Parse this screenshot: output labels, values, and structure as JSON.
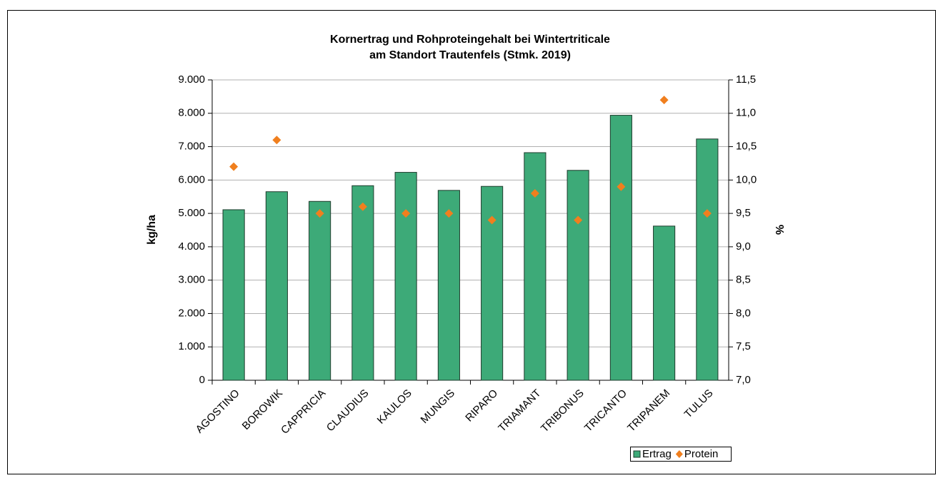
{
  "chart_data": {
    "type": "bar",
    "title": [
      "Kornertrag und Rohproteingehalt bei Wintertriticale",
      "am Standort Trautenfels (Stmk. 2019)"
    ],
    "ylabel": "kg/ha",
    "y2label": "%",
    "categories": [
      "AGOSTINO",
      "BOROWIK",
      "CAPPRICIA",
      "CLAUDIUS",
      "KAULOS",
      "MUNGIS",
      "RIPARO",
      "TRIAMANT",
      "TRIBONUS",
      "TRICANTO",
      "TRIPANEM",
      "TULUS"
    ],
    "series": [
      {
        "name": "Ertrag",
        "type": "bar",
        "color": "#3daa78",
        "values": [
          5110,
          5650,
          5360,
          5830,
          6230,
          5690,
          5810,
          6820,
          6290,
          7940,
          4620,
          7230
        ]
      },
      {
        "name": "Protein",
        "type": "scatter",
        "axis": "y2",
        "color": "#f07f1e",
        "values": [
          10.2,
          10.6,
          9.5,
          9.6,
          9.5,
          9.5,
          9.4,
          9.8,
          9.4,
          9.9,
          11.2,
          9.5
        ]
      }
    ],
    "ylim": [
      0,
      9000
    ],
    "yticks": [
      0,
      {
        "value": 1000,
        "label": "1.000"
      },
      {
        "value": 2000,
        "label": "2.000"
      },
      {
        "value": 3000,
        "label": "3.000"
      },
      {
        "value": 4000,
        "label": "4.000"
      },
      {
        "value": 5000,
        "label": "5.000"
      },
      {
        "value": 6000,
        "label": "6.000"
      },
      {
        "value": 7000,
        "label": "7.000"
      },
      {
        "value": 8000,
        "label": "8.000"
      },
      {
        "value": 9000,
        "label": "9.000"
      }
    ],
    "y2lim": [
      7,
      11.5
    ],
    "y2ticks": [
      {
        "value": 7,
        "label": "7,0"
      },
      {
        "value": 7.5,
        "label": "7,5"
      },
      {
        "value": 8,
        "label": "8,0"
      },
      {
        "value": 8.5,
        "label": "8,5"
      },
      {
        "value": 9,
        "label": "9,0"
      },
      {
        "value": 9.5,
        "label": "9,5"
      },
      {
        "value": 10,
        "label": "10,0"
      },
      {
        "value": 10.5,
        "label": "10,5"
      },
      {
        "value": 11,
        "label": "11,0"
      },
      {
        "value": 11.5,
        "label": "11,5"
      }
    ],
    "grid": true,
    "legend": "bottom-right"
  }
}
